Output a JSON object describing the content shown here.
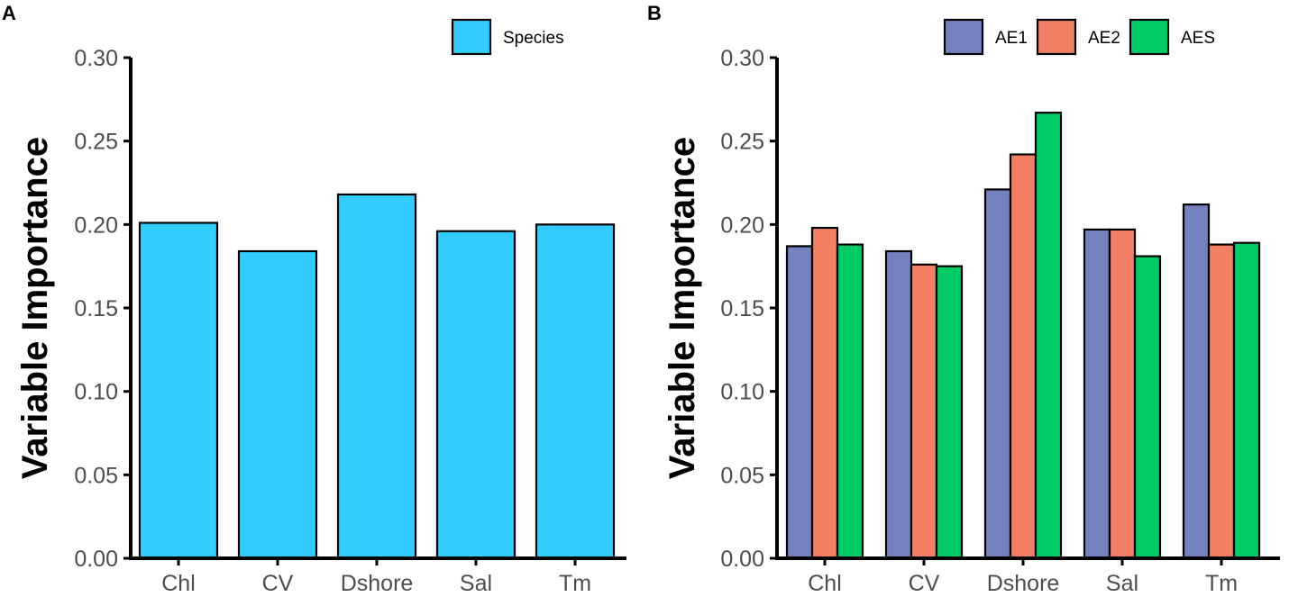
{
  "chart_data": [
    {
      "id": "A",
      "panel_label": "A",
      "type": "bar",
      "ylabel": "Variable Importance",
      "xlabel": "",
      "ylim": [
        0,
        0.3
      ],
      "yticks": [
        "0.00",
        "0.05",
        "0.10",
        "0.15",
        "0.20",
        "0.25",
        "0.30"
      ],
      "categories": [
        "Chl",
        "CV",
        "Dshore",
        "Sal",
        "Tm"
      ],
      "legend_position": "top-right",
      "series": [
        {
          "name": "Species",
          "color": "#33CCFF",
          "values": [
            0.201,
            0.184,
            0.218,
            0.196,
            0.2
          ]
        }
      ]
    },
    {
      "id": "B",
      "panel_label": "B",
      "type": "bar",
      "ylabel": "Variable Importance",
      "xlabel": "",
      "ylim": [
        0,
        0.3
      ],
      "yticks": [
        "0.00",
        "0.05",
        "0.10",
        "0.15",
        "0.20",
        "0.25",
        "0.30"
      ],
      "categories": [
        "Chl",
        "CV",
        "Dshore",
        "Sal",
        "Tm"
      ],
      "legend_position": "top-right",
      "series": [
        {
          "name": "AE1",
          "color": "#7580BF",
          "values": [
            0.187,
            0.184,
            0.221,
            0.197,
            0.212
          ]
        },
        {
          "name": "AE2",
          "color": "#F27E63",
          "values": [
            0.198,
            0.176,
            0.242,
            0.197,
            0.188
          ]
        },
        {
          "name": "AES",
          "color": "#00CC66",
          "values": [
            0.188,
            0.175,
            0.267,
            0.181,
            0.189
          ]
        }
      ]
    }
  ]
}
